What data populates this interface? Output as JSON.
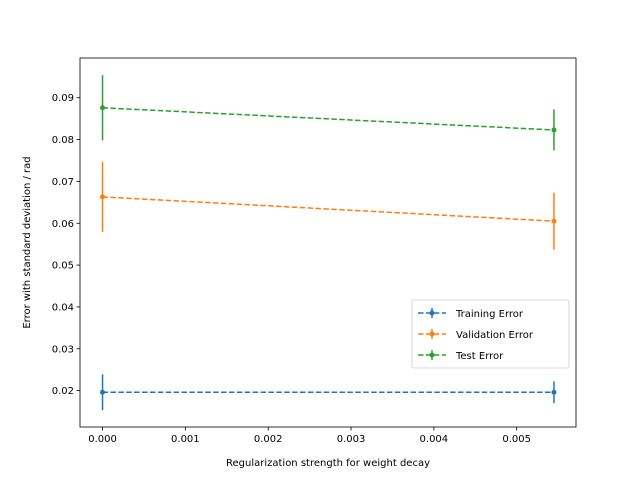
{
  "chart_data": {
    "type": "line",
    "title": "",
    "xlabel": "Regularization strength for weight decay",
    "ylabel": "Error with standard deviation / rad",
    "xlim": [
      -0.000272,
      0.005716
    ],
    "ylim": [
      0.0113,
      0.0995
    ],
    "xticks": [
      0.0,
      0.001,
      0.002,
      0.003,
      0.004,
      0.005
    ],
    "xtick_labels": [
      "0.000",
      "0.001",
      "0.002",
      "0.003",
      "0.004",
      "0.005"
    ],
    "yticks": [
      0.02,
      0.03,
      0.04,
      0.05,
      0.06,
      0.07,
      0.08,
      0.09
    ],
    "ytick_labels": [
      "0.02",
      "0.03",
      "0.04",
      "0.05",
      "0.06",
      "0.07",
      "0.08",
      "0.09"
    ],
    "x": [
      0.0,
      0.00545
    ],
    "grid": false,
    "legend_position": "lower-right",
    "series": [
      {
        "name": "Training Error",
        "color": "#1f77b4",
        "values": [
          0.0196,
          0.0196
        ],
        "errors": [
          0.0043,
          0.0026
        ]
      },
      {
        "name": "Validation Error",
        "color": "#ff7f0e",
        "values": [
          0.0663,
          0.0605
        ],
        "errors": [
          0.0084,
          0.0068
        ]
      },
      {
        "name": "Test Error",
        "color": "#2ca02c",
        "values": [
          0.0876,
          0.0823
        ],
        "errors": [
          0.0078,
          0.0049
        ]
      }
    ]
  }
}
